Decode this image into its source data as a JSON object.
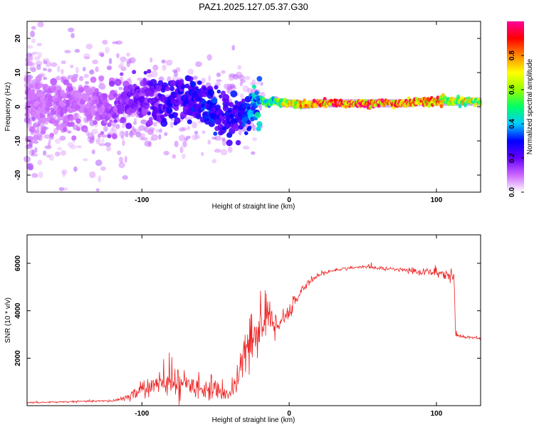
{
  "title": "PAZ1.2025.127.05.37.G30",
  "chart_data": [
    {
      "type": "heatmap",
      "xlabel": "Height of straight line (km)",
      "ylabel": "Frequency (Hz)",
      "xlim": [
        -178,
        130
      ],
      "ylim": [
        -25,
        25
      ],
      "xticks": [
        -100,
        0,
        100
      ],
      "xtick_labels": [
        "-100",
        "0",
        "100"
      ],
      "yticks": [
        -20,
        -10,
        0,
        10,
        20
      ],
      "ytick_labels": [
        "-20",
        "-10",
        "0",
        "10",
        "20"
      ],
      "colorbar": {
        "label": "Normalized spectral amplitude",
        "range": [
          0.0,
          1.0
        ],
        "ticks": [
          0.0,
          0.2,
          0.4,
          0.6,
          0.8
        ],
        "tick_labels": [
          "0.0",
          "0.2",
          "0.4",
          "0.6",
          "0.8"
        ],
        "colors": [
          "#ffffff",
          "#cc66ff",
          "#6600ff",
          "#0000ff",
          "#00ccff",
          "#00ff66",
          "#99ff00",
          "#ffff00",
          "#ff8800",
          "#ff0000",
          "#ff0099"
        ]
      },
      "ridge": {
        "x": [
          -165,
          -150,
          -135,
          -120,
          -105,
          -95,
          -85,
          -75,
          -65,
          -55,
          -45,
          -40,
          -35,
          -30,
          -25,
          -20,
          -15,
          -10,
          -5,
          0,
          10,
          20,
          40,
          60,
          80,
          90,
          100,
          110,
          120,
          130
        ],
        "y": [
          1,
          0,
          1,
          -1,
          2,
          2,
          1,
          3,
          1,
          0,
          -2,
          -3,
          -3,
          -2,
          0,
          2,
          1,
          2,
          1,
          1,
          0.5,
          1,
          1,
          1,
          1,
          1.5,
          1.5,
          1.5,
          1.5,
          1.5
        ],
        "amplitude": [
          0.1,
          0.12,
          0.1,
          0.15,
          0.2,
          0.22,
          0.25,
          0.28,
          0.3,
          0.32,
          0.3,
          0.28,
          0.3,
          0.35,
          0.4,
          0.5,
          0.55,
          0.6,
          0.7,
          0.75,
          0.85,
          0.9,
          0.95,
          0.95,
          0.9,
          0.9,
          0.85,
          0.7,
          0.75,
          0.7
        ]
      }
    },
    {
      "type": "line",
      "xlabel": "Height of straight line (km)",
      "ylabel": "SNR (10 * v/v)",
      "xlim": [
        -178,
        130
      ],
      "ylim": [
        0,
        7200
      ],
      "xticks": [
        -100,
        0,
        100
      ],
      "xtick_labels": [
        "-100",
        "0",
        "100"
      ],
      "yticks": [
        2000,
        4000,
        6000
      ],
      "ytick_labels": [
        "2000",
        "4000",
        "6000"
      ],
      "series": [
        {
          "color": "#ee2222",
          "x": [
            -178,
            -160,
            -140,
            -120,
            -110,
            -100,
            -90,
            -80,
            -70,
            -60,
            -50,
            -40,
            -35,
            -30,
            -25,
            -20,
            -15,
            -10,
            -5,
            0,
            5,
            10,
            15,
            20,
            25,
            30,
            40,
            50,
            60,
            70,
            80,
            90,
            100,
            105,
            110,
            112,
            113,
            115,
            120,
            130
          ],
          "y": [
            120,
            150,
            180,
            200,
            350,
            700,
            850,
            1000,
            900,
            800,
            600,
            500,
            1200,
            2000,
            2800,
            3400,
            3800,
            3400,
            3700,
            3900,
            4500,
            5000,
            5300,
            5500,
            5600,
            5700,
            5800,
            5850,
            5800,
            5750,
            5700,
            5650,
            5600,
            5550,
            5500,
            5400,
            3000,
            2950,
            2900,
            2850
          ],
          "noise": [
            40,
            40,
            40,
            60,
            200,
            400,
            600,
            700,
            600,
            550,
            400,
            350,
            900,
            1300,
            1500,
            1400,
            1200,
            800,
            600,
            400,
            300,
            200,
            150,
            120,
            100,
            80,
            70,
            70,
            80,
            100,
            150,
            200,
            250,
            300,
            350,
            300,
            80,
            80,
            80,
            80
          ]
        }
      ]
    }
  ]
}
